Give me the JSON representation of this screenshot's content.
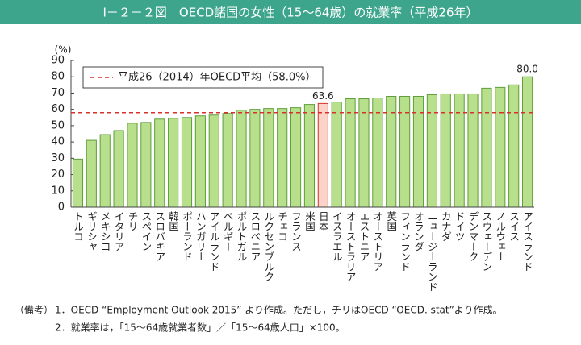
{
  "chart_data": {
    "type": "bar",
    "title": "Ⅰ－２－２図　OECD諸国の女性（15～64歳）の就業率（平成26年）",
    "y_unit": "(%)",
    "categories": [
      "トルコ",
      "ギリシャ",
      "メキシコ",
      "イタリア",
      "チリ",
      "スペイン",
      "スロバキア",
      "韓国",
      "ポーランド",
      "ハンガリー",
      "アイルランド",
      "ベルギー",
      "ポルトガル",
      "スロベニア",
      "ルクセンブルク",
      "チェコ",
      "フランス",
      "米国",
      "日本",
      "イスラエル",
      "オーストラリア",
      "エストニア",
      "オーストリア",
      "英国",
      "フィンランド",
      "オランダ",
      "ニュージーランド",
      "カナダ",
      "ドイツ",
      "デンマーク",
      "スウェーデン",
      "ノルウェー",
      "スイス",
      "アイスランド"
    ],
    "values": [
      29.5,
      41,
      44.5,
      47,
      51.5,
      52,
      54,
      54.5,
      55,
      56,
      56.5,
      57.5,
      59.5,
      60,
      60.5,
      60.5,
      61,
      63,
      63.6,
      64.5,
      66.5,
      66.5,
      67,
      68,
      68,
      68,
      69,
      69.5,
      69.5,
      69.5,
      73,
      73.5,
      75,
      80.0
    ],
    "value_labels": [
      null,
      null,
      null,
      null,
      null,
      null,
      null,
      null,
      null,
      null,
      null,
      null,
      null,
      null,
      null,
      null,
      null,
      null,
      "63.6",
      null,
      null,
      null,
      null,
      null,
      null,
      null,
      null,
      null,
      null,
      null,
      null,
      null,
      null,
      "80.0"
    ],
    "colors": [
      "#b7df8c",
      "#b7df8c",
      "#b7df8c",
      "#b7df8c",
      "#b7df8c",
      "#b7df8c",
      "#b7df8c",
      "#b7df8c",
      "#b7df8c",
      "#b7df8c",
      "#b7df8c",
      "#b7df8c",
      "#b7df8c",
      "#b7df8c",
      "#b7df8c",
      "#b7df8c",
      "#b7df8c",
      "#b7df8c",
      "#fbd3c9",
      "#b7df8c",
      "#b7df8c",
      "#b7df8c",
      "#b7df8c",
      "#b7df8c",
      "#b7df8c",
      "#b7df8c",
      "#b7df8c",
      "#b7df8c",
      "#b7df8c",
      "#b7df8c",
      "#b7df8c",
      "#b7df8c",
      "#b7df8c",
      "#b7df8c"
    ],
    "edge_colors": [
      "#5e9e3a",
      "#5e9e3a",
      "#5e9e3a",
      "#5e9e3a",
      "#5e9e3a",
      "#5e9e3a",
      "#5e9e3a",
      "#5e9e3a",
      "#5e9e3a",
      "#5e9e3a",
      "#5e9e3a",
      "#5e9e3a",
      "#5e9e3a",
      "#5e9e3a",
      "#5e9e3a",
      "#5e9e3a",
      "#5e9e3a",
      "#5e9e3a",
      "#d9302c",
      "#5e9e3a",
      "#5e9e3a",
      "#5e9e3a",
      "#5e9e3a",
      "#5e9e3a",
      "#5e9e3a",
      "#5e9e3a",
      "#5e9e3a",
      "#5e9e3a",
      "#5e9e3a",
      "#5e9e3a",
      "#5e9e3a",
      "#5e9e3a",
      "#5e9e3a",
      "#5e9e3a"
    ],
    "reference_line": {
      "value": 58.0,
      "label": "平成26（2014）年OECD平均（58.0%）",
      "color": "#d9302c"
    },
    "ylim": [
      0,
      90
    ],
    "yticks": [
      0,
      10,
      20,
      30,
      40,
      50,
      60,
      70,
      80,
      90
    ],
    "grid": false,
    "notes": [
      "（備考）",
      "1．OECD “Employment Outlook 2015” より作成。ただし，チリはOECD “OECD. stat”より作成。",
      "2．就業率は，「15～64歳就業者数」／「15～64歳人口」×100。"
    ]
  }
}
